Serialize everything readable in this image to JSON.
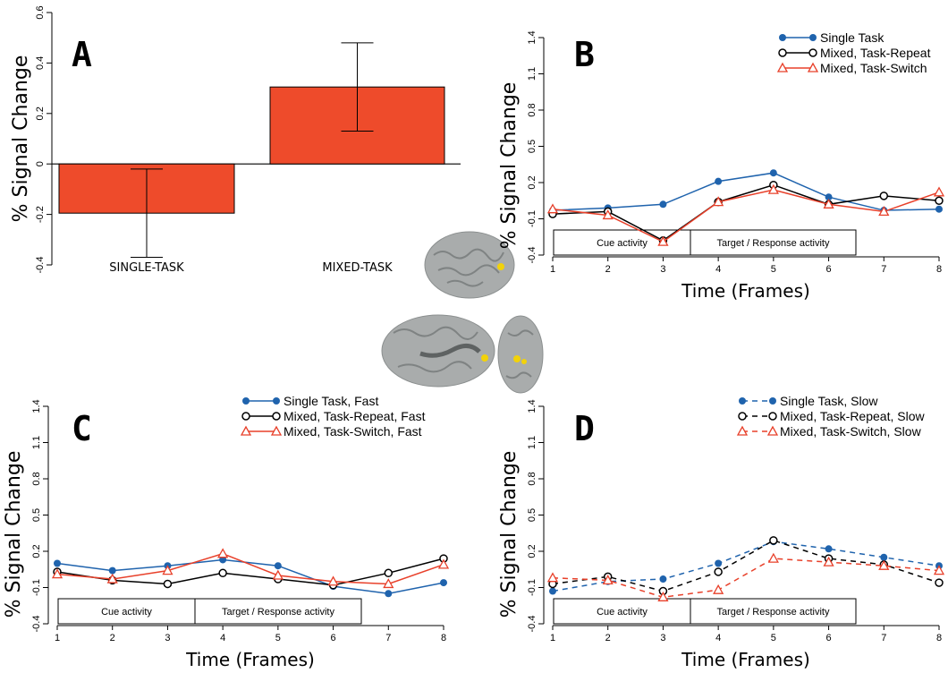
{
  "colors": {
    "bar": "#ee4b2b",
    "single": "#1f63ad",
    "repeat": "#000000",
    "switch": "#e8402a",
    "brain": "#a9acac",
    "activation": "#f2d20a"
  },
  "icons": {
    "brain": "brain-surface-render"
  },
  "chart_data": [
    {
      "id": "A",
      "type": "bar",
      "panel_label": "A",
      "ylabel": "% Signal Change",
      "ylim": [
        -0.4,
        0.6
      ],
      "yticks": [
        "-0.4",
        "-0.2",
        "0",
        "0.2",
        "0.4",
        "0.6"
      ],
      "categories": [
        "SINGLE-TASK",
        "MIXED-TASK"
      ],
      "values": [
        -0.195,
        0.305
      ],
      "errors": [
        [
          -0.37,
          -0.02
        ],
        [
          0.13,
          0.48
        ]
      ]
    },
    {
      "id": "B",
      "type": "line",
      "panel_label": "B",
      "ylabel": "% Signal Change",
      "xlabel": "Time (Frames)",
      "x": [
        1,
        2,
        3,
        4,
        5,
        6,
        7,
        8
      ],
      "xticks": [
        "1",
        "2",
        "3",
        "4",
        "5",
        "6",
        "7",
        "8"
      ],
      "ylim": [
        -0.4,
        1.4
      ],
      "yticks": [
        "-0.4",
        "-0.1",
        "0.2",
        "0.5",
        "0.8",
        "1.1",
        "1.4"
      ],
      "phases": [
        "Cue activity",
        "Target / Response activity"
      ],
      "series": [
        {
          "name": "Single Task",
          "values": [
            -0.03,
            -0.01,
            0.02,
            0.21,
            0.28,
            0.08,
            -0.03,
            -0.02
          ],
          "color": "#1f63ad",
          "marker": "dot",
          "dashed": false
        },
        {
          "name": "Mixed, Task-Repeat",
          "values": [
            -0.06,
            -0.04,
            -0.28,
            0.04,
            0.18,
            0.02,
            0.09,
            0.05
          ],
          "color": "#000000",
          "marker": "circle",
          "dashed": false
        },
        {
          "name": "Mixed, Task-Switch",
          "values": [
            -0.02,
            -0.07,
            -0.29,
            0.04,
            0.14,
            0.02,
            -0.04,
            0.12
          ],
          "color": "#e8402a",
          "marker": "triangle",
          "dashed": false
        }
      ]
    },
    {
      "id": "C",
      "type": "line",
      "panel_label": "C",
      "ylabel": "% Signal Change",
      "xlabel": "Time (Frames)",
      "x": [
        1,
        2,
        3,
        4,
        5,
        6,
        7,
        8
      ],
      "xticks": [
        "1",
        "2",
        "3",
        "4",
        "5",
        "6",
        "7",
        "8"
      ],
      "ylim": [
        -0.4,
        1.4
      ],
      "yticks": [
        "-0.4",
        "-0.1",
        "0.2",
        "0.5",
        "0.8",
        "1.1",
        "1.4"
      ],
      "phases": [
        "Cue activity",
        "Target / Response activity"
      ],
      "series": [
        {
          "name": "Single Task, Fast",
          "values": [
            0.1,
            0.04,
            0.08,
            0.13,
            0.08,
            -0.09,
            -0.15,
            -0.06
          ],
          "color": "#1f63ad",
          "marker": "dot",
          "dashed": false
        },
        {
          "name": "Mixed, Task-Repeat, Fast",
          "values": [
            0.03,
            -0.04,
            -0.07,
            0.02,
            -0.03,
            -0.08,
            0.02,
            0.14
          ],
          "color": "#000000",
          "marker": "circle",
          "dashed": false
        },
        {
          "name": "Mixed, Task-Switch, Fast",
          "values": [
            0.01,
            -0.03,
            0.04,
            0.18,
            0.0,
            -0.05,
            -0.07,
            0.09
          ],
          "color": "#e8402a",
          "marker": "triangle",
          "dashed": false
        }
      ]
    },
    {
      "id": "D",
      "type": "line",
      "panel_label": "D",
      "ylabel": "% Signal Change",
      "xlabel": "Time (Frames)",
      "x": [
        1,
        2,
        3,
        4,
        5,
        6,
        7,
        8
      ],
      "xticks": [
        "1",
        "2",
        "3",
        "4",
        "5",
        "6",
        "7",
        "8"
      ],
      "ylim": [
        -0.4,
        1.4
      ],
      "yticks": [
        "-0.4",
        "-0.1",
        "0.2",
        "0.5",
        "0.8",
        "1.1",
        "1.4"
      ],
      "phases": [
        "Cue activity",
        "Target / Response activity"
      ],
      "series": [
        {
          "name": "Single Task, Slow",
          "values": [
            -0.13,
            -0.05,
            -0.03,
            0.1,
            0.28,
            0.22,
            0.15,
            0.08
          ],
          "color": "#1f63ad",
          "marker": "dot",
          "dashed": true
        },
        {
          "name": "Mixed, Task-Repeat, Slow",
          "values": [
            -0.07,
            -0.01,
            -0.13,
            0.03,
            0.29,
            0.14,
            0.09,
            -0.06
          ],
          "color": "#000000",
          "marker": "circle",
          "dashed": true
        },
        {
          "name": "Mixed, Task-Switch, Slow",
          "values": [
            -0.02,
            -0.04,
            -0.18,
            -0.12,
            0.14,
            0.11,
            0.08,
            0.04
          ],
          "color": "#e8402a",
          "marker": "triangle",
          "dashed": true
        }
      ]
    }
  ]
}
